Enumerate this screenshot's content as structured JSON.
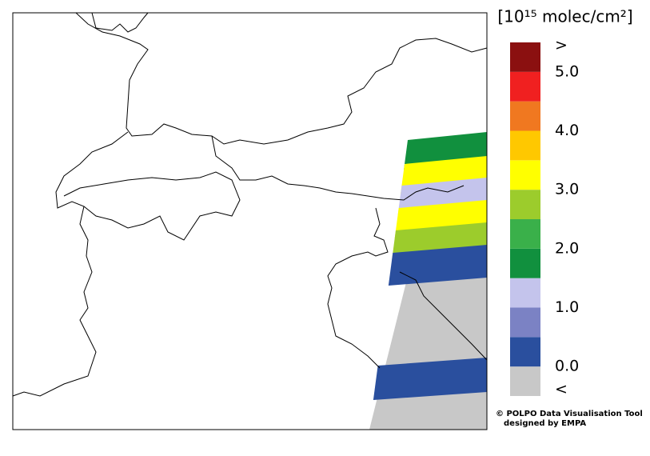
{
  "colorbar": {
    "title": "[10¹⁵ molec/cm²]",
    "lim": [
      0,
      5
    ],
    "colors": [
      "#c8c8c8",
      "#2a4f9e",
      "#7b82c4",
      "#c4c4ec",
      "#11903e",
      "#3ab04a",
      "#9ccc2c",
      "#ffff00",
      "#ffc800",
      "#f07820",
      "#f02020",
      "#8b1010"
    ],
    "ticks": [
      {
        "value": 0,
        "label": "0.0"
      },
      {
        "value": 1,
        "label": "1.0"
      },
      {
        "value": 2,
        "label": "2.0"
      },
      {
        "value": 3,
        "label": "3.0"
      },
      {
        "value": 4,
        "label": "4.0"
      },
      {
        "value": 5,
        "label": "5.0"
      }
    ],
    "over_label": ">",
    "under_label": "<"
  },
  "swath": {
    "values": [
      1.75,
      3.25,
      1.25,
      3.25,
      2.75,
      0.25,
      0.25
    ]
  },
  "credits": [
    "© POLPO Data Visualisation Tool",
    "designed by EMPA"
  ]
}
